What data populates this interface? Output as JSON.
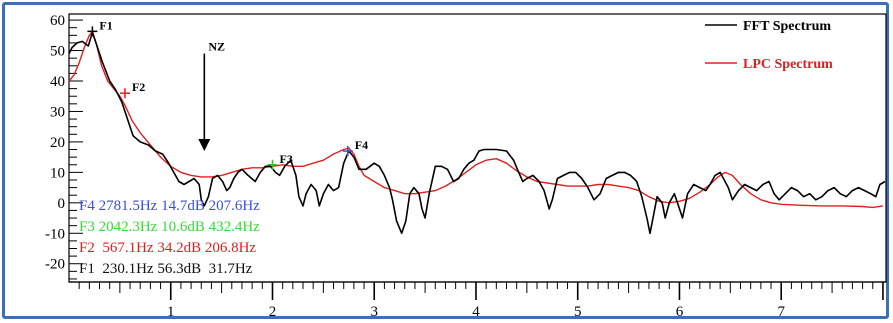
{
  "chart_data": {
    "type": "line",
    "xlim": [
      0,
      8.03
    ],
    "ylim": [
      -26,
      62
    ],
    "x_ticks": [
      1,
      2,
      3,
      4,
      5,
      6,
      7
    ],
    "y_ticks": [
      60,
      50,
      40,
      30,
      20,
      10,
      0,
      -10,
      -20
    ],
    "grid": false,
    "legend_position": "top-right",
    "series": [
      {
        "name": "FFT Spectrum",
        "color": "#000000",
        "points": [
          [
            0,
            49
          ],
          [
            0.03,
            51
          ],
          [
            0.08,
            52.5
          ],
          [
            0.13,
            53
          ],
          [
            0.19,
            51.5
          ],
          [
            0.23,
            56
          ],
          [
            0.27,
            52
          ],
          [
            0.33,
            46
          ],
          [
            0.4,
            40
          ],
          [
            0.46,
            37
          ],
          [
            0.52,
            33
          ],
          [
            0.58,
            27
          ],
          [
            0.63,
            22
          ],
          [
            0.7,
            20
          ],
          [
            0.78,
            19
          ],
          [
            0.85,
            17
          ],
          [
            0.92,
            16
          ],
          [
            0.98,
            13
          ],
          [
            1.03,
            10
          ],
          [
            1.08,
            7
          ],
          [
            1.13,
            6
          ],
          [
            1.18,
            7
          ],
          [
            1.23,
            8
          ],
          [
            1.28,
            6
          ],
          [
            1.3,
            1
          ],
          [
            1.33,
            -1
          ],
          [
            1.37,
            2
          ],
          [
            1.41,
            8
          ],
          [
            1.46,
            9
          ],
          [
            1.51,
            7
          ],
          [
            1.55,
            4
          ],
          [
            1.58,
            5
          ],
          [
            1.62,
            8
          ],
          [
            1.66,
            10
          ],
          [
            1.7,
            11
          ],
          [
            1.76,
            9
          ],
          [
            1.83,
            7
          ],
          [
            1.88,
            10
          ],
          [
            1.93,
            12
          ],
          [
            1.98,
            12
          ],
          [
            2.03,
            10
          ],
          [
            2.07,
            9
          ],
          [
            2.12,
            12
          ],
          [
            2.18,
            14
          ],
          [
            2.23,
            9
          ],
          [
            2.26,
            2
          ],
          [
            2.3,
            -1
          ],
          [
            2.33,
            3
          ],
          [
            2.38,
            6
          ],
          [
            2.43,
            4
          ],
          [
            2.46,
            -1
          ],
          [
            2.5,
            3
          ],
          [
            2.55,
            6
          ],
          [
            2.6,
            4
          ],
          [
            2.65,
            5
          ],
          [
            2.7,
            13
          ],
          [
            2.75,
            17
          ],
          [
            2.8,
            15
          ],
          [
            2.85,
            11
          ],
          [
            2.92,
            11
          ],
          [
            3.0,
            13
          ],
          [
            3.05,
            12
          ],
          [
            3.1,
            9
          ],
          [
            3.15,
            5
          ],
          [
            3.18,
            1
          ],
          [
            3.22,
            -6
          ],
          [
            3.27,
            -10
          ],
          [
            3.31,
            -6
          ],
          [
            3.35,
            3
          ],
          [
            3.39,
            5
          ],
          [
            3.44,
            3
          ],
          [
            3.47,
            -2
          ],
          [
            3.5,
            -5
          ],
          [
            3.54,
            3
          ],
          [
            3.6,
            12
          ],
          [
            3.66,
            12
          ],
          [
            3.72,
            11
          ],
          [
            3.78,
            7
          ],
          [
            3.83,
            8
          ],
          [
            3.88,
            11
          ],
          [
            3.93,
            13
          ],
          [
            3.98,
            14
          ],
          [
            4.03,
            17
          ],
          [
            4.08,
            17.5
          ],
          [
            4.13,
            17.5
          ],
          [
            4.2,
            17.5
          ],
          [
            4.3,
            17
          ],
          [
            4.37,
            14
          ],
          [
            4.42,
            10
          ],
          [
            4.46,
            7
          ],
          [
            4.5,
            8
          ],
          [
            4.56,
            9
          ],
          [
            4.62,
            7
          ],
          [
            4.67,
            4
          ],
          [
            4.72,
            -2
          ],
          [
            4.75,
            1
          ],
          [
            4.8,
            8
          ],
          [
            4.86,
            9
          ],
          [
            4.92,
            10
          ],
          [
            4.98,
            10
          ],
          [
            5.04,
            8
          ],
          [
            5.1,
            5
          ],
          [
            5.16,
            1
          ],
          [
            5.22,
            3
          ],
          [
            5.28,
            8
          ],
          [
            5.34,
            9
          ],
          [
            5.4,
            10
          ],
          [
            5.46,
            10
          ],
          [
            5.52,
            9
          ],
          [
            5.58,
            7
          ],
          [
            5.63,
            2
          ],
          [
            5.68,
            -5
          ],
          [
            5.71,
            -10
          ],
          [
            5.74,
            -5
          ],
          [
            5.78,
            2
          ],
          [
            5.83,
            0
          ],
          [
            5.86,
            -5
          ],
          [
            5.9,
            0
          ],
          [
            5.95,
            3
          ],
          [
            6.0,
            -2
          ],
          [
            6.03,
            -5
          ],
          [
            6.08,
            3
          ],
          [
            6.14,
            6
          ],
          [
            6.2,
            5
          ],
          [
            6.26,
            4
          ],
          [
            6.3,
            6
          ],
          [
            6.35,
            9
          ],
          [
            6.4,
            10
          ],
          [
            6.48,
            5
          ],
          [
            6.52,
            1
          ],
          [
            6.58,
            4
          ],
          [
            6.64,
            6
          ],
          [
            6.7,
            5
          ],
          [
            6.76,
            4
          ],
          [
            6.82,
            6
          ],
          [
            6.88,
            7
          ],
          [
            6.93,
            3
          ],
          [
            6.98,
            1
          ],
          [
            7.04,
            3
          ],
          [
            7.1,
            5
          ],
          [
            7.16,
            4
          ],
          [
            7.22,
            2
          ],
          [
            7.28,
            3
          ],
          [
            7.34,
            1
          ],
          [
            7.4,
            2
          ],
          [
            7.46,
            4
          ],
          [
            7.52,
            5
          ],
          [
            7.58,
            3
          ],
          [
            7.64,
            2
          ],
          [
            7.7,
            4
          ],
          [
            7.76,
            5
          ],
          [
            7.82,
            4
          ],
          [
            7.88,
            3
          ],
          [
            7.93,
            2
          ],
          [
            7.97,
            6
          ],
          [
            8.02,
            7
          ]
        ]
      },
      {
        "name": "LPC Spectrum",
        "color": "#e02020",
        "points": [
          [
            0,
            40
          ],
          [
            0.05,
            42
          ],
          [
            0.1,
            46
          ],
          [
            0.15,
            51
          ],
          [
            0.2,
            55
          ],
          [
            0.23,
            56.3
          ],
          [
            0.27,
            52
          ],
          [
            0.32,
            45
          ],
          [
            0.38,
            40
          ],
          [
            0.45,
            37
          ],
          [
            0.5,
            35
          ],
          [
            0.55,
            32
          ],
          [
            0.62,
            27
          ],
          [
            0.7,
            23
          ],
          [
            0.8,
            19
          ],
          [
            0.9,
            15
          ],
          [
            1.0,
            12
          ],
          [
            1.1,
            10
          ],
          [
            1.2,
            9
          ],
          [
            1.3,
            8.5
          ],
          [
            1.4,
            8.5
          ],
          [
            1.5,
            9
          ],
          [
            1.6,
            10
          ],
          [
            1.7,
            11
          ],
          [
            1.8,
            11.5
          ],
          [
            1.9,
            11.5
          ],
          [
            2.0,
            12
          ],
          [
            2.1,
            12.5
          ],
          [
            2.2,
            12
          ],
          [
            2.3,
            12
          ],
          [
            2.4,
            13
          ],
          [
            2.5,
            14
          ],
          [
            2.6,
            16
          ],
          [
            2.7,
            17.5
          ],
          [
            2.75,
            18
          ],
          [
            2.8,
            16
          ],
          [
            2.85,
            12
          ],
          [
            2.9,
            9
          ],
          [
            3.0,
            7
          ],
          [
            3.1,
            5
          ],
          [
            3.2,
            4
          ],
          [
            3.3,
            3
          ],
          [
            3.4,
            3
          ],
          [
            3.5,
            3.5
          ],
          [
            3.6,
            4
          ],
          [
            3.7,
            5.5
          ],
          [
            3.8,
            7.5
          ],
          [
            3.9,
            10
          ],
          [
            4.0,
            12.5
          ],
          [
            4.1,
            14
          ],
          [
            4.2,
            14.5
          ],
          [
            4.3,
            13
          ],
          [
            4.4,
            10.5
          ],
          [
            4.5,
            8.5
          ],
          [
            4.6,
            7
          ],
          [
            4.7,
            6.5
          ],
          [
            4.8,
            6
          ],
          [
            4.9,
            5.5
          ],
          [
            5.0,
            5.5
          ],
          [
            5.1,
            5.5
          ],
          [
            5.2,
            6
          ],
          [
            5.3,
            6
          ],
          [
            5.4,
            5.5
          ],
          [
            5.5,
            5
          ],
          [
            5.6,
            4
          ],
          [
            5.7,
            2
          ],
          [
            5.8,
            0.5
          ],
          [
            5.9,
            0
          ],
          [
            6.0,
            0.5
          ],
          [
            6.1,
            1.5
          ],
          [
            6.2,
            3.5
          ],
          [
            6.3,
            6
          ],
          [
            6.38,
            8.5
          ],
          [
            6.45,
            10
          ],
          [
            6.52,
            9
          ],
          [
            6.6,
            6
          ],
          [
            6.7,
            3
          ],
          [
            6.8,
            1
          ],
          [
            6.9,
            0
          ],
          [
            7.0,
            -0.5
          ],
          [
            7.2,
            -0.8
          ],
          [
            7.4,
            -1
          ],
          [
            7.6,
            -1
          ],
          [
            7.8,
            -1.2
          ],
          [
            7.9,
            -1.5
          ],
          [
            8.0,
            -1
          ]
        ]
      }
    ],
    "peaks": [
      {
        "label": "F1",
        "x": 0.23,
        "y": 56.3,
        "marker_color": "#000000"
      },
      {
        "label": "F2",
        "x": 0.55,
        "y": 36,
        "marker_color": "#e02020"
      },
      {
        "label": "F3",
        "x": 2.0,
        "y": 12.5,
        "marker_color": "#22cc22"
      },
      {
        "label": "F4",
        "x": 2.74,
        "y": 17,
        "marker_color": "#3050d8"
      }
    ],
    "annotation": {
      "label": "NZ",
      "x": 1.33,
      "arrow_top_y": 49,
      "arrow_bottom_y": 17
    },
    "readouts": [
      {
        "text": "F4 2781.5Hz 14.7dB 207.6Hz",
        "color": "#3b4fd8"
      },
      {
        "text": "F3 2042.3Hz 10.6dB 432.4Hz",
        "color": "#33dd33"
      },
      {
        "text": "F2  567.1Hz 34.2dB 206.8Hz",
        "color": "#e02020"
      },
      {
        "text": "F1  230.1Hz 56.3dB  31.7Hz",
        "color": "#111111"
      }
    ]
  }
}
